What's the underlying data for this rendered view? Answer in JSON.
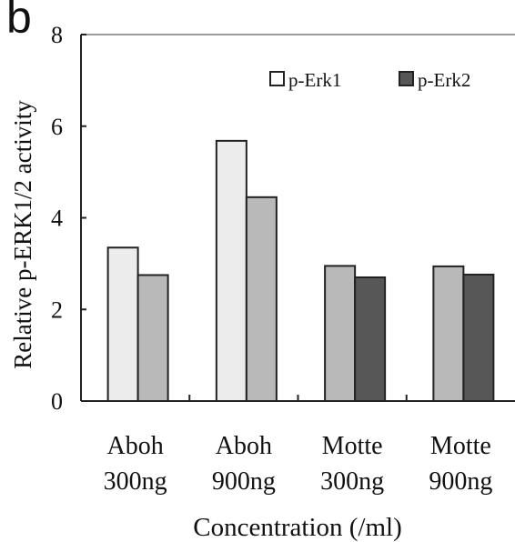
{
  "panel_label": "b",
  "chart_data": {
    "type": "bar",
    "title": "",
    "xlabel": "Concentration (/ml)",
    "ylabel": "Relative p-ERK1/2 activity",
    "ylim": [
      0,
      8
    ],
    "yticks": [
      "0",
      "2",
      "4",
      "6",
      "8"
    ],
    "grid": false,
    "legend_position": "top-right",
    "categories": [
      {
        "line1": "Aboh",
        "line2": "300ng"
      },
      {
        "line1": "Aboh",
        "line2": "900ng"
      },
      {
        "line1": "Motte",
        "line2": "300ng"
      },
      {
        "line1": "Motte",
        "line2": "900ng"
      }
    ],
    "series": [
      {
        "name": "p-Erk1",
        "values": [
          3.35,
          5.68,
          2.95,
          2.94
        ]
      },
      {
        "name": "p-Erk2",
        "values": [
          2.75,
          4.45,
          2.7,
          2.76
        ]
      }
    ],
    "bar_colors": [
      [
        "#ececec",
        "#b9b9b9"
      ],
      [
        "#ececec",
        "#b9b9b9"
      ],
      [
        "#b9b9b9",
        "#575757"
      ],
      [
        "#b9b9b9",
        "#575757"
      ]
    ],
    "legend": [
      {
        "label": "p-Erk1",
        "color": "#ffffff"
      },
      {
        "label": "p-Erk2",
        "color": "#575757"
      }
    ]
  }
}
